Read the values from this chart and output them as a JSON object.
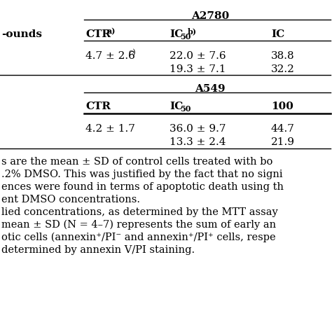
{
  "background_color": "#ffffff",
  "sec1_header": "A2780",
  "sec1_col1": "CTR",
  "sec1_col1_super": "a)",
  "sec1_col2_main": "IC",
  "sec1_col2_sub": "50",
  "sec1_col2_super": "b)",
  "sec1_col3": "IC",
  "sec2_header": "A549",
  "sec2_col1": "CTR",
  "sec2_col2_main": "IC",
  "sec2_col2_sub": "50",
  "sec2_col3": "100",
  "left_label": "-ounds",
  "row1_c1": "4.7 ± 2.6",
  "row1_c1_super": "c)",
  "row1_c2": "22.0 ± 7.6",
  "row1_c3": "38.8",
  "row2_c2": "19.3 ± 7.1",
  "row2_c3": "32.2",
  "row3_c1": "4.2 ± 1.7",
  "row3_c2": "36.0 ± 9.7",
  "row3_c3": "44.7",
  "row4_c2": "13.3 ± 2.4",
  "row4_c3": "21.9",
  "fn1": "s are the mean ± SD of control cells treated with bo",
  "fn2": ".2% DMSO. This was justified by the fact that no signi",
  "fn3": "ences were found in terms of apoptotic death using th",
  "fn4": "ent DMSO concentrations.",
  "fn5": "lied concentrations, as determined by the MTT assay",
  "fn6": "mean ± SD (N = 4–7) represents the sum of early an",
  "fn7": "otic cells (annexin⁺/PI⁻ and annexin⁺/PI⁺ cells, respe",
  "fn8": "determined by annexin V/PI staining."
}
